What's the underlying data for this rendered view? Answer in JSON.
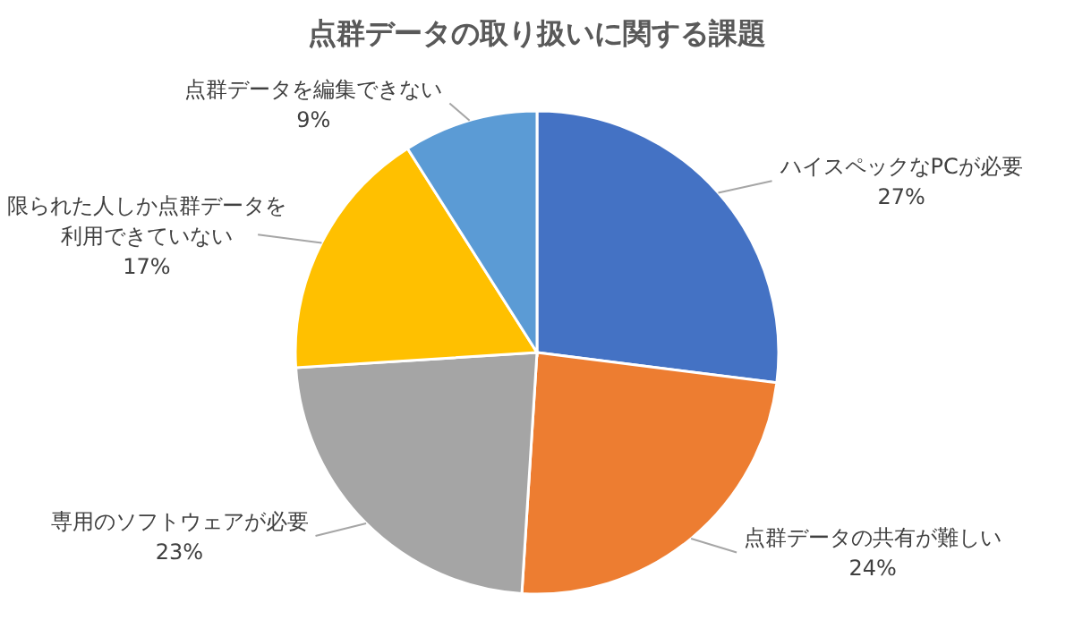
{
  "chart_data": {
    "type": "pie",
    "title": "点群データの取り扱いに関する課題",
    "categories": [
      "ハイスペックなPCが必要",
      "点群データの共有が難しい",
      "専用のソフトウェアが必要",
      "限られた人しか点群データを利用できていない",
      "点群データを編集できない"
    ],
    "values": [
      27,
      24,
      23,
      17,
      9
    ],
    "colors": [
      "#4472c4",
      "#ed7d31",
      "#a5a5a5",
      "#ffc000",
      "#5b9bd5"
    ],
    "value_labels": [
      "27%",
      "24%",
      "23%",
      "17%",
      "9%"
    ]
  }
}
